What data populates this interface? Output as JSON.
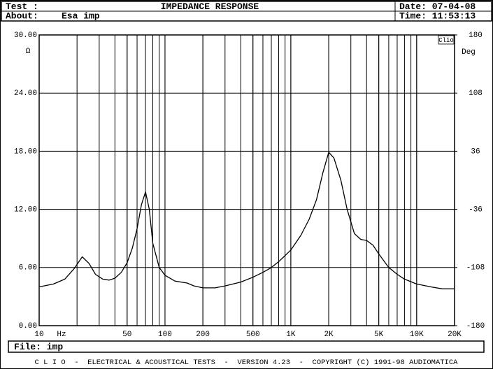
{
  "header": {
    "test_label": "Test :",
    "title": "IMPEDANCE RESPONSE",
    "date": "Date: 07-04-08",
    "about_label": "About:",
    "about": "Esa imp",
    "time": "Time: 11:53:13"
  },
  "chart_data": {
    "type": "line",
    "badge": "Clio",
    "y_unit": "Ω",
    "y2_unit": "Deg",
    "x_unit": "Hz",
    "xscale": "log",
    "grid": true,
    "xlim": [
      10,
      20000
    ],
    "xticks": [
      10,
      50,
      100,
      200,
      500,
      {
        "value": 1000,
        "label": "1K"
      },
      {
        "value": 2000,
        "label": "2K"
      },
      {
        "value": 5000,
        "label": "5K"
      },
      {
        "value": 10000,
        "label": "10K"
      },
      {
        "value": 20000,
        "label": "20K"
      }
    ],
    "ylim": [
      0,
      30
    ],
    "yticks": [
      {
        "value": 0,
        "label": "0.00"
      },
      {
        "value": 6,
        "label": "6.00"
      },
      {
        "value": 12,
        "label": "12.00"
      },
      {
        "value": 18,
        "label": "18.00"
      },
      {
        "value": 24,
        "label": "24.00"
      },
      {
        "value": 30,
        "label": "30.00"
      }
    ],
    "y2lim": [
      -180,
      180
    ],
    "y2ticks": [
      -180,
      -108,
      -36,
      36,
      108,
      180
    ],
    "x": [
      10,
      13,
      16,
      19,
      22,
      25,
      28,
      32,
      36,
      40,
      45,
      50,
      55,
      60,
      65,
      70,
      75,
      80,
      90,
      100,
      120,
      150,
      170,
      200,
      250,
      300,
      400,
      500,
      600,
      700,
      800,
      1000,
      1200,
      1400,
      1600,
      1800,
      2000,
      2200,
      2500,
      2800,
      3200,
      3600,
      4000,
      4500,
      5000,
      6000,
      7000,
      8000,
      10000,
      13000,
      16000,
      20000
    ],
    "series": [
      {
        "color": "#000000",
        "values": [
          4.0,
          4.3,
          4.8,
          5.9,
          7.1,
          6.4,
          5.3,
          4.8,
          4.7,
          4.9,
          5.5,
          6.5,
          8.0,
          10.0,
          12.5,
          13.8,
          12.0,
          8.5,
          6.0,
          5.2,
          4.6,
          4.4,
          4.1,
          3.9,
          3.9,
          4.1,
          4.5,
          5.0,
          5.5,
          6.0,
          6.6,
          7.8,
          9.3,
          11.0,
          13.0,
          15.8,
          17.9,
          17.3,
          15.0,
          12.0,
          9.5,
          8.9,
          8.8,
          8.3,
          7.4,
          6.0,
          5.3,
          4.8,
          4.3,
          4.0,
          3.8,
          3.8
        ]
      }
    ]
  },
  "footer": {
    "file": "File: imp",
    "credits": "C L I O  -  ELECTRICAL & ACOUSTICAL TESTS  -  VERSION 4.23  -  COPYRIGHT (C) 1991-98 AUDIOMATICA"
  }
}
